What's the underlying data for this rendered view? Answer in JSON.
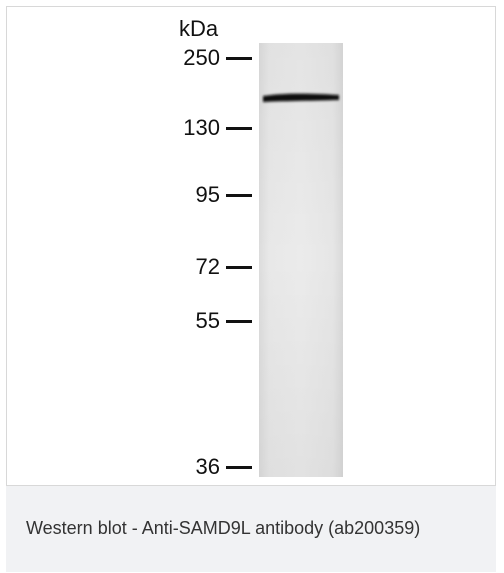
{
  "figure": {
    "unit_label": "kDa",
    "markers": [
      {
        "label": "250",
        "kda": 250
      },
      {
        "label": "130",
        "kda": 130
      },
      {
        "label": "95",
        "kda": 95
      },
      {
        "label": "72",
        "kda": 72
      },
      {
        "label": "55",
        "kda": 55
      },
      {
        "label": "36",
        "kda": 36
      }
    ],
    "band": {
      "lane": 1,
      "approx_kda": 180
    },
    "colors": {
      "lane": "#e6e6e6",
      "band": "#0b0b0b",
      "frame_border": "#d8d8d8"
    }
  },
  "caption": {
    "text": "Western blot - Anti-SAMD9L antibody (ab200359)",
    "background": "#f1f2f4"
  }
}
